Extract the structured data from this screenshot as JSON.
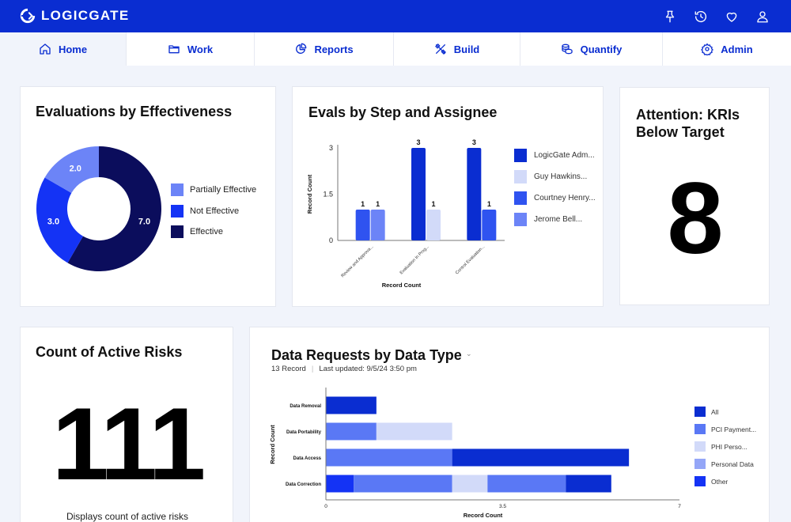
{
  "app": {
    "logo_text": "LOGICGATE"
  },
  "colors": {
    "brand": "#0a2dd1",
    "dark_navy": "#0b0d5c",
    "blue": "#1433f5",
    "mid_blue": "#4f6ef5",
    "light_blue": "#6c84f7",
    "pale_blue": "#d2daf9"
  },
  "top_icons": [
    "pin-icon",
    "history-icon",
    "heart-icon",
    "user-icon"
  ],
  "nav": [
    {
      "label": "Home",
      "icon": "home-icon",
      "active": true
    },
    {
      "label": "Work",
      "icon": "folder-icon"
    },
    {
      "label": "Reports",
      "icon": "reports-icon"
    },
    {
      "label": "Build",
      "icon": "build-icon"
    },
    {
      "label": "Quantify",
      "icon": "quantify-icon"
    },
    {
      "label": "Admin",
      "icon": "gear-icon"
    }
  ],
  "cards": {
    "effectiveness": {
      "title": "Evaluations by Effectiveness",
      "chart_data": {
        "type": "pie",
        "title": "Evaluations by Effectiveness",
        "slices": [
          {
            "label": "Effective",
            "value": 7.0,
            "color": "#0b0d5c"
          },
          {
            "label": "Not Effective",
            "value": 3.0,
            "color": "#1433f5"
          },
          {
            "label": "Partially Effective",
            "value": 2.0,
            "color": "#6c84f7"
          }
        ],
        "legend": [
          "Partially Effective",
          "Not Effective",
          "Effective"
        ],
        "legend_position": "right"
      }
    },
    "evals": {
      "title": "Evals by Step and Assignee",
      "chart_data": {
        "type": "bar",
        "title": "Evals by Step and Assignee",
        "categories": [
          "Review and Approva...",
          "Evaluation In Prog...",
          "Control Evaluation..."
        ],
        "series": [
          {
            "name": "LogicGate Adm...",
            "color": "#0a2dd1",
            "values": [
              null,
              3,
              3
            ]
          },
          {
            "name": "Guy Hawkins...",
            "color": "#d2daf9",
            "values": [
              null,
              1,
              null
            ]
          },
          {
            "name": "Courtney Henry...",
            "color": "#2f53f0",
            "values": [
              1,
              null,
              1
            ]
          },
          {
            "name": "Jerome Bell...",
            "color": "#6c84f7",
            "values": [
              1,
              null,
              null
            ]
          }
        ],
        "bars": [
          {
            "category": 0,
            "series": 2,
            "value": 1
          },
          {
            "category": 0,
            "series": 3,
            "value": 1
          },
          {
            "category": 1,
            "series": 0,
            "value": 3
          },
          {
            "category": 1,
            "series": 1,
            "value": 1
          },
          {
            "category": 2,
            "series": 0,
            "value": 3
          },
          {
            "category": 2,
            "series": 2,
            "value": 1
          }
        ],
        "yticks": [
          "0",
          "1.5",
          "3"
        ],
        "xlabel": "Record Count",
        "ylabel": "Record Count",
        "ylim": [
          0,
          3
        ],
        "legend_position": "right"
      }
    },
    "kri": {
      "title": "Attention: KRIs Below Target",
      "value": "8"
    },
    "active_risks": {
      "title": "Count of Active Risks",
      "value": "111",
      "caption": "Displays count of active risks"
    },
    "data_requests": {
      "title": "Data Requests by Data Type",
      "subtitle_count": "13 Record",
      "subtitle_updated": "Last updated: 9/5/24 3:50 pm",
      "chart_data": {
        "type": "bar",
        "orientation": "horizontal",
        "stacked": true,
        "title": "Data Requests by Data Type",
        "categories": [
          "Data Removal",
          "Data Portability",
          "Data Access",
          "Data Correction"
        ],
        "segments": [
          [
            {
              "series": "All",
              "value": 1
            }
          ],
          [
            {
              "series": "PCI Payment...",
              "value": 1
            },
            {
              "series": "PHI Perso...",
              "value": 1.5
            }
          ],
          [
            {
              "series": "PCI Payment...",
              "value": 2.5
            },
            {
              "series": "All",
              "value": 3.5
            }
          ],
          [
            {
              "series": "Other",
              "value": 0.55
            },
            {
              "series": "PCI Payment...",
              "value": 1.95
            },
            {
              "series": "PHI Perso...",
              "value": 0.7
            },
            {
              "series": "PCI Payment...",
              "value": 1.55
            },
            {
              "series": "All",
              "value": 0.9
            }
          ]
        ],
        "series": [
          {
            "name": "All",
            "color": "#0a2dd1"
          },
          {
            "name": "PCI Payment...",
            "color": "#5a78f5"
          },
          {
            "name": "PHI Perso...",
            "color": "#d2daf9"
          },
          {
            "name": "Personal Data",
            "color": "#94a6f7"
          },
          {
            "name": "Other",
            "color": "#1433f5"
          }
        ],
        "xticks": [
          "0",
          "3.5",
          "7"
        ],
        "xlim": [
          0,
          7
        ],
        "xlabel": "Record Count",
        "ylabel": "Record Count",
        "legend_position": "right"
      }
    }
  }
}
